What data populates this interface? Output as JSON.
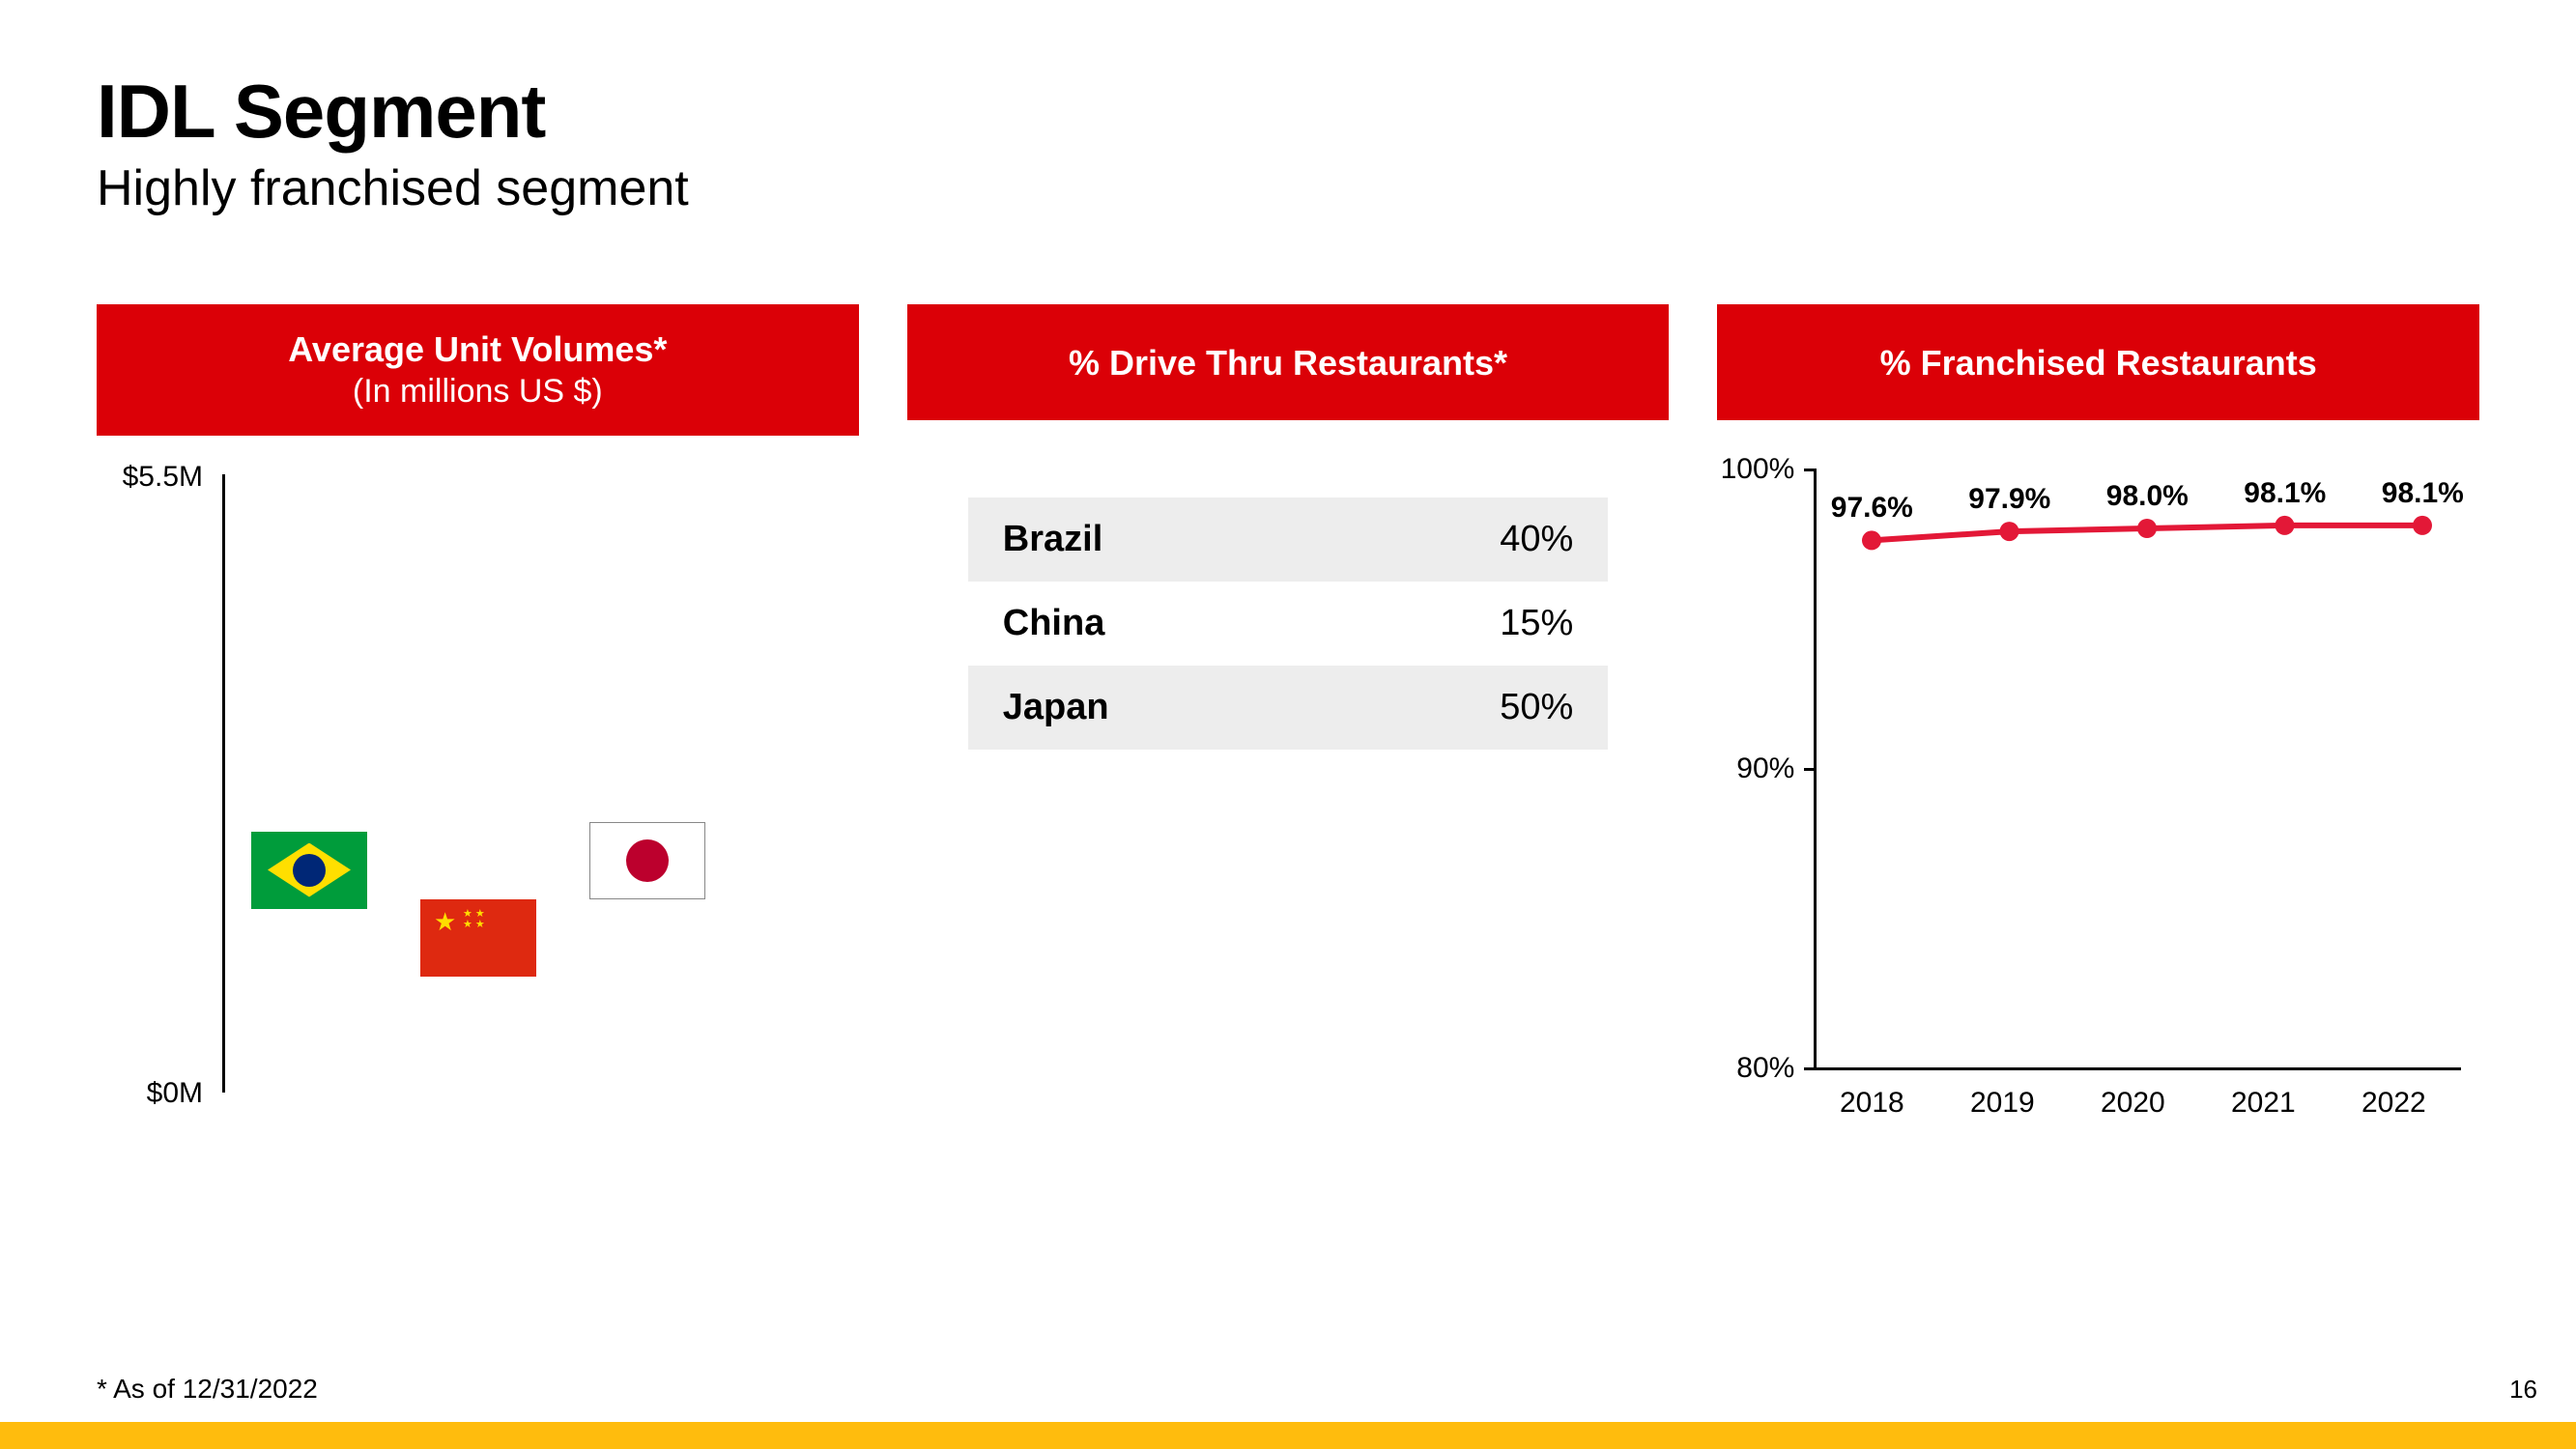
{
  "title": "IDL Segment",
  "subtitle": "Highly franchised segment",
  "footnote": "* As of 12/31/2022",
  "page_number": "16",
  "colors": {
    "brand_red": "#db0007",
    "brand_gold": "#ffbc0d",
    "line_red": "#e31837",
    "background": "#ffffff",
    "text": "#000000",
    "table_shade": "#ededed"
  },
  "panel1": {
    "title_line1": "Average Unit Volumes*",
    "title_line2": "(In millions US $)",
    "type": "bar-with-flags",
    "y_top_label": "$5.5M",
    "y_bottom_label": "$0M",
    "ylim": [
      0,
      5.5
    ],
    "countries": [
      {
        "name": "Brazil",
        "value_m": 2.3,
        "flag": "brazil"
      },
      {
        "name": "China",
        "value_m": 1.7,
        "flag": "china"
      },
      {
        "name": "Japan",
        "value_m": 2.4,
        "flag": "japan"
      }
    ]
  },
  "panel2": {
    "title": "% Drive Thru Restaurants*",
    "type": "table",
    "rows": [
      {
        "name": "Brazil",
        "value": "40%",
        "shaded": true
      },
      {
        "name": "China",
        "value": "15%",
        "shaded": false
      },
      {
        "name": "Japan",
        "value": "50%",
        "shaded": true
      }
    ]
  },
  "panel3": {
    "title": "% Franchised Restaurants",
    "type": "line",
    "ylim": [
      80,
      100
    ],
    "ytick_step": 10,
    "yticks": [
      "100%",
      "90%",
      "80%"
    ],
    "x_labels": [
      "2018",
      "2019",
      "2020",
      "2021",
      "2022"
    ],
    "series": {
      "color": "#e31837",
      "marker": "circle",
      "marker_size": 20,
      "line_width": 6,
      "values": [
        97.6,
        97.9,
        98.0,
        98.1,
        98.1
      ],
      "labels": [
        "97.6%",
        "97.9%",
        "98.0%",
        "98.1%",
        "98.1%"
      ]
    }
  }
}
